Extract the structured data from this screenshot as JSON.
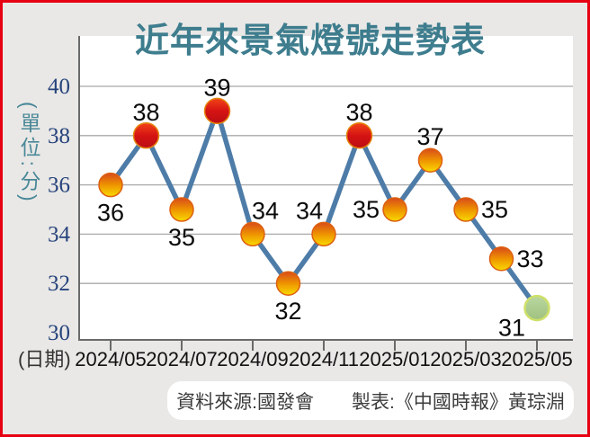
{
  "frame": {
    "background": "#e9e8e6",
    "border_color": "#e60012"
  },
  "chart_data": {
    "type": "line",
    "title": "近年來景氣燈號走勢表",
    "ylabel": "(單位:分)",
    "xlabel": "(日期)",
    "x_tick_labels": [
      "2024/05",
      "2024/07",
      "2024/09",
      "2024/11",
      "2025/01",
      "2025/03",
      "2025/05"
    ],
    "x_label_every": 2,
    "points": [
      {
        "value": 36,
        "light": "yellow-red",
        "label_pos": "below"
      },
      {
        "value": 38,
        "light": "red",
        "label_pos": "above"
      },
      {
        "value": 35,
        "light": "yellow-red",
        "label_pos": "below"
      },
      {
        "value": 39,
        "light": "red",
        "label_pos": "above"
      },
      {
        "value": 34,
        "light": "yellow-red",
        "label_pos": "above-right"
      },
      {
        "value": 32,
        "light": "yellow-red",
        "label_pos": "below"
      },
      {
        "value": 34,
        "light": "yellow-red",
        "label_pos": "above-left"
      },
      {
        "value": 38,
        "light": "red",
        "label_pos": "above"
      },
      {
        "value": 35,
        "light": "yellow-red",
        "label_pos": "left"
      },
      {
        "value": 37,
        "light": "yellow-red",
        "label_pos": "above"
      },
      {
        "value": 35,
        "light": "yellow-red",
        "label_pos": "right"
      },
      {
        "value": 33,
        "light": "yellow-red",
        "label_pos": "right"
      },
      {
        "value": 31,
        "light": "green",
        "label_pos": "below-left"
      }
    ],
    "y_ticks": [
      40,
      38,
      36,
      34,
      32,
      30
    ],
    "ylim": [
      30,
      41
    ],
    "grid": "horizontal-only",
    "legend": "none",
    "line_color": "#4e7ca8",
    "marker_styles": {
      "red": {
        "stops": [
          "#f14417",
          "#d51313",
          "#bb0e13"
        ],
        "stroke": "#e5870f",
        "stroke_width": 1.5,
        "radius": 14
      },
      "yellow-red": {
        "stops": [
          "#d84a1b",
          "#ee9300",
          "#f9da00"
        ],
        "stroke": "#dd5f10",
        "stroke_width": 1.5,
        "radius": 13
      },
      "green": {
        "stops": [
          "#b9d79f",
          "#a0c17f"
        ],
        "stroke": "#cfe06a",
        "stroke_width": 2.5,
        "radius": 13.5
      }
    },
    "colors": {
      "title": "#3e7d8e",
      "ylabel": "#4a8898",
      "xlabel": "#333333",
      "y_tick": "#26437c",
      "x_tick": "#111111",
      "grid": "#a9a9a9",
      "axis": "#6a6a6a",
      "point_label": "#0a0a0a",
      "plot_background": "#ffffff"
    }
  },
  "footer": {
    "text": "資料來源:國發會　　製表:《中國時報》黃琮淵",
    "background": "#ffffff",
    "color": "#3b3b3b"
  }
}
